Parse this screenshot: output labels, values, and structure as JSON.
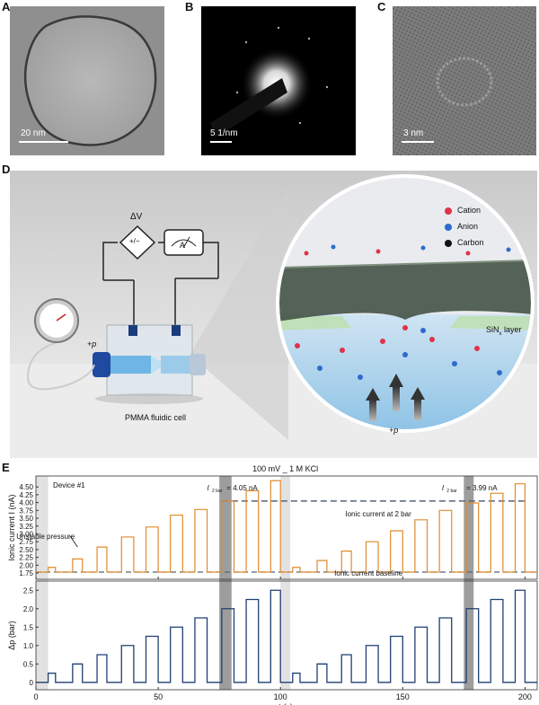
{
  "panels": {
    "A": {
      "letter": "A",
      "scale": "20 nm"
    },
    "B": {
      "letter": "B",
      "scale": "5 1/nm"
    },
    "C": {
      "letter": "C",
      "scale": "3 nm"
    },
    "D": {
      "letter": "D"
    },
    "E": {
      "letter": "E"
    }
  },
  "schematic": {
    "delta_v": "ΔV",
    "plus_minus": "+/−",
    "ammeter": "A",
    "pressure_left": "+p",
    "cell_label": "PMMA fluidic cell",
    "legend": [
      {
        "label": "Cation",
        "color": "#e0324b"
      },
      {
        "label": "Anion",
        "color": "#2d6bd0"
      },
      {
        "label": "Carbon",
        "color": "#111111"
      }
    ],
    "sin_layer": "SiN",
    "sin_sub": "x",
    "sin_suffix": " layer",
    "pressure_bottom": "+p"
  },
  "chart_data": {
    "type": "line",
    "title": "100 mV _ 1 M KCl",
    "annotation_device": "Device #1",
    "annotation_unstable": "Unstable pressure",
    "annotation_i1": "I",
    "annotation_i1_sub": "2 bar",
    "annotation_i1_val": "= 4.05 nA",
    "annotation_i2": "I",
    "annotation_i2_sub": "2 bar",
    "annotation_i2_val": "= 3.99 nA",
    "annotation_2bar": "Ionic current at 2 bar",
    "annotation_baseline": "Ionic current baseline",
    "xlabel": "t (s)",
    "xlim": [
      0,
      205
    ],
    "xticks": [
      0,
      50,
      100,
      150,
      200
    ],
    "top": {
      "ylabel": "Ionic current I (nA)",
      "ylim": [
        1.55,
        4.85
      ],
      "yticks": [
        "1.75",
        "2.00",
        "2.25",
        "2.50",
        "2.75",
        "3.00",
        "3.25",
        "3.50",
        "3.75",
        "4.00",
        "4.25",
        "4.50"
      ],
      "ytick_values": [
        1.75,
        2.0,
        2.25,
        2.5,
        2.75,
        3.0,
        3.25,
        3.5,
        3.75,
        4.0,
        4.25,
        4.5
      ],
      "baseline": 1.78,
      "level_2bar": 4.05,
      "pulses": [
        {
          "start": 5,
          "end": 8,
          "value": 1.93
        },
        {
          "start": 15,
          "end": 19,
          "value": 2.2
        },
        {
          "start": 25,
          "end": 29,
          "value": 2.58
        },
        {
          "start": 35,
          "end": 40,
          "value": 2.9
        },
        {
          "start": 45,
          "end": 50,
          "value": 3.22
        },
        {
          "start": 55,
          "end": 60,
          "value": 3.6
        },
        {
          "start": 65,
          "end": 70,
          "value": 3.78
        },
        {
          "start": 76,
          "end": 81,
          "value": 4.05
        },
        {
          "start": 86,
          "end": 91,
          "value": 4.38
        },
        {
          "start": 96,
          "end": 100,
          "value": 4.7
        },
        {
          "start": 105,
          "end": 108,
          "value": 1.93
        },
        {
          "start": 115,
          "end": 119,
          "value": 2.15
        },
        {
          "start": 125,
          "end": 129,
          "value": 2.45
        },
        {
          "start": 135,
          "end": 140,
          "value": 2.75
        },
        {
          "start": 145,
          "end": 150,
          "value": 3.1
        },
        {
          "start": 155,
          "end": 160,
          "value": 3.45
        },
        {
          "start": 165,
          "end": 170,
          "value": 3.75
        },
        {
          "start": 176,
          "end": 181,
          "value": 3.99
        },
        {
          "start": 186,
          "end": 191,
          "value": 4.3
        },
        {
          "start": 196,
          "end": 200,
          "value": 4.6
        }
      ]
    },
    "bottom": {
      "ylabel": "Δp (bar)",
      "ylim": [
        -0.2,
        2.75
      ],
      "yticks": [
        "0",
        "0.5",
        "1.0",
        "1.5",
        "2.0",
        "2.5"
      ],
      "ytick_values": [
        0,
        0.5,
        1.0,
        1.5,
        2.0,
        2.5
      ],
      "pulses": [
        {
          "start": 5,
          "end": 8,
          "value": 0.25
        },
        {
          "start": 15,
          "end": 19,
          "value": 0.5
        },
        {
          "start": 25,
          "end": 29,
          "value": 0.75
        },
        {
          "start": 35,
          "end": 40,
          "value": 1.0
        },
        {
          "start": 45,
          "end": 50,
          "value": 1.25
        },
        {
          "start": 55,
          "end": 60,
          "value": 1.5
        },
        {
          "start": 65,
          "end": 70,
          "value": 1.75
        },
        {
          "start": 76,
          "end": 81,
          "value": 2.0
        },
        {
          "start": 86,
          "end": 91,
          "value": 2.25
        },
        {
          "start": 96,
          "end": 100,
          "value": 2.5
        },
        {
          "start": 105,
          "end": 108,
          "value": 0.25
        },
        {
          "start": 115,
          "end": 119,
          "value": 0.5
        },
        {
          "start": 125,
          "end": 129,
          "value": 0.75
        },
        {
          "start": 135,
          "end": 140,
          "value": 1.0
        },
        {
          "start": 145,
          "end": 150,
          "value": 1.25
        },
        {
          "start": 155,
          "end": 160,
          "value": 1.5
        },
        {
          "start": 165,
          "end": 170,
          "value": 1.75
        },
        {
          "start": 176,
          "end": 181,
          "value": 2.0
        },
        {
          "start": 186,
          "end": 191,
          "value": 2.25
        },
        {
          "start": 196,
          "end": 200,
          "value": 2.5
        }
      ]
    },
    "highlights_light": [
      [
        0,
        5
      ],
      [
        100,
        104
      ]
    ],
    "highlights_dark": [
      [
        75,
        80
      ],
      [
        175,
        179
      ]
    ],
    "colors": {
      "current": "#e08a2e",
      "pressure": "#1f3f73",
      "dashed": "#55657a"
    }
  }
}
